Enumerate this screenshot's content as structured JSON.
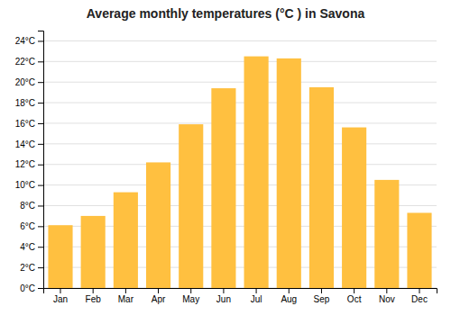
{
  "chart_data": {
    "type": "bar",
    "title": "Average monthly temperatures (°C ) in Savona",
    "categories": [
      "Jan",
      "Feb",
      "Mar",
      "Apr",
      "May",
      "Jun",
      "Jul",
      "Aug",
      "Sep",
      "Oct",
      "Nov",
      "Dec"
    ],
    "values": [
      6.1,
      7.0,
      9.3,
      12.2,
      15.9,
      19.4,
      22.5,
      22.3,
      19.5,
      15.6,
      10.5,
      7.3
    ],
    "color": "#FFC040",
    "ylim": [
      0,
      25
    ],
    "yticks": [
      {
        "value": 0,
        "label": "0°C"
      },
      {
        "value": 2,
        "label": "2°C"
      },
      {
        "value": 4,
        "label": "4°C"
      },
      {
        "value": 6,
        "label": "6°C"
      },
      {
        "value": 8,
        "label": "8°C"
      },
      {
        "value": 10,
        "label": "10°C"
      },
      {
        "value": 12,
        "label": "12°C"
      },
      {
        "value": 14,
        "label": "14°C"
      },
      {
        "value": 16,
        "label": "16°C"
      },
      {
        "value": 18,
        "label": "18°C"
      },
      {
        "value": 20,
        "label": "20°C"
      },
      {
        "value": 22,
        "label": "22°C"
      },
      {
        "value": 24,
        "label": "24°C"
      }
    ],
    "grid": true
  }
}
